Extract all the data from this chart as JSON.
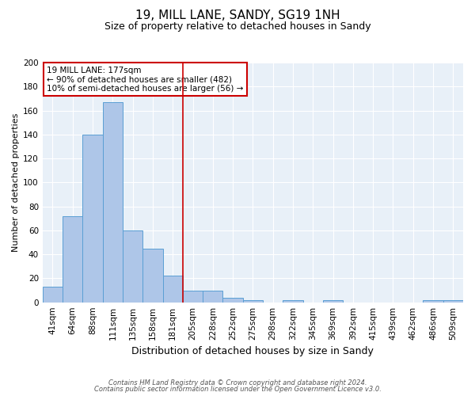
{
  "title1": "19, MILL LANE, SANDY, SG19 1NH",
  "title2": "Size of property relative to detached houses in Sandy",
  "xlabel": "Distribution of detached houses by size in Sandy",
  "ylabel": "Number of detached properties",
  "bar_labels": [
    "41sqm",
    "64sqm",
    "88sqm",
    "111sqm",
    "135sqm",
    "158sqm",
    "181sqm",
    "205sqm",
    "228sqm",
    "252sqm",
    "275sqm",
    "298sqm",
    "322sqm",
    "345sqm",
    "369sqm",
    "392sqm",
    "415sqm",
    "439sqm",
    "462sqm",
    "486sqm",
    "509sqm"
  ],
  "bar_values": [
    13,
    72,
    140,
    167,
    60,
    45,
    22,
    10,
    10,
    4,
    2,
    0,
    2,
    0,
    2,
    0,
    0,
    0,
    0,
    2,
    2
  ],
  "bar_color": "#aec6e8",
  "bar_edge_color": "#5a9fd4",
  "vline_color": "#cc0000",
  "vline_pos": 6.5,
  "annotation_text": "19 MILL LANE: 177sqm\n← 90% of detached houses are smaller (482)\n10% of semi-detached houses are larger (56) →",
  "annotation_box_color": "#ffffff",
  "annotation_box_edge": "#cc0000",
  "ylim": [
    0,
    200
  ],
  "yticks": [
    0,
    20,
    40,
    60,
    80,
    100,
    120,
    140,
    160,
    180,
    200
  ],
  "footer_line1": "Contains HM Land Registry data © Crown copyright and database right 2024.",
  "footer_line2": "Contains public sector information licensed under the Open Government Licence v3.0.",
  "bg_color": "#e8f0f8",
  "fig_bg_color": "#ffffff",
  "title1_fontsize": 11,
  "title2_fontsize": 9,
  "ylabel_fontsize": 8,
  "xlabel_fontsize": 9,
  "tick_fontsize": 7.5,
  "annot_fontsize": 7.5,
  "footer_fontsize": 6
}
